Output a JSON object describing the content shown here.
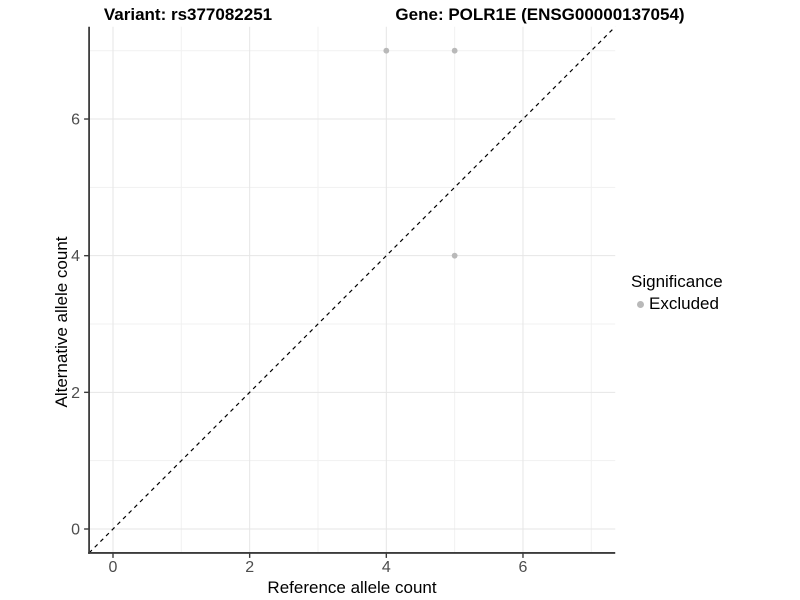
{
  "chart_data": {
    "type": "scatter",
    "titles": {
      "variant": "Variant: rs377082251",
      "gene": "Gene: POLR1E (ENSG00000137054)"
    },
    "xlabel": "Reference allele count",
    "ylabel": "Alternative allele count",
    "x_ticks": [
      0,
      2,
      4,
      6
    ],
    "y_ticks": [
      0,
      2,
      4,
      6
    ],
    "axis_range": [
      -0.35,
      7.35
    ],
    "grid": {
      "major": [
        0,
        2,
        4,
        6
      ],
      "minor": [
        1,
        3,
        5,
        7
      ],
      "shown": true
    },
    "identity_line": {
      "shown": true,
      "style": "dashed",
      "color": "#000000"
    },
    "series": [
      {
        "name": "Excluded",
        "color": "#b9b9b9",
        "points": [
          [
            4,
            7
          ],
          [
            5,
            7
          ],
          [
            5,
            4
          ]
        ]
      }
    ],
    "legend": {
      "title": "Significance",
      "position": "right",
      "entries": [
        {
          "label": "Excluded",
          "color": "#b9b9b9"
        }
      ]
    },
    "colors": {
      "background": "#ffffff",
      "axis_line": "#3c3c3c",
      "tick_label": "#4d4d4d",
      "grid_major": "#e6e6e6",
      "grid_minor": "#f1f1f1"
    }
  }
}
